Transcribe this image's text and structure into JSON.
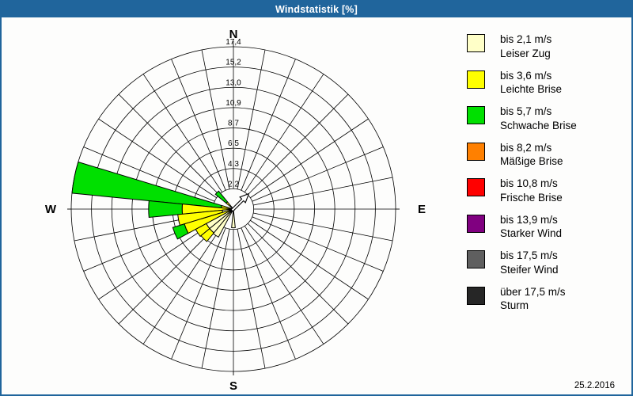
{
  "window": {
    "title": "Windstatistik [%]",
    "date": "25.2.2016"
  },
  "colors": {
    "titlebar": "#20659C",
    "border": "#20659C",
    "background": "#FDFDFC",
    "grid": "#000000"
  },
  "legend": {
    "entries": [
      {
        "id": "leiser_zug",
        "color": "#FFFFC8",
        "speed": "bis 2,1 m/s",
        "name": "Leiser Zug"
      },
      {
        "id": "leichte_brise",
        "color": "#FFFF00",
        "speed": "bis 3,6 m/s",
        "name": "Leichte Brise"
      },
      {
        "id": "schwache_brise",
        "color": "#00E000",
        "speed": "bis 5,7 m/s",
        "name": "Schwache Brise"
      },
      {
        "id": "maessige_brise",
        "color": "#FF8000",
        "speed": "bis 8,2 m/s",
        "name": "Mäßige Brise"
      },
      {
        "id": "frische_brise",
        "color": "#FF0000",
        "speed": "bis 10,8 m/s",
        "name": "Frische Brise"
      },
      {
        "id": "starker_wind",
        "color": "#800080",
        "speed": "bis 13,9 m/s",
        "name": "Starker Wind"
      },
      {
        "id": "steifer_wind",
        "color": "#5F5F5F",
        "speed": "bis 17,5 m/s",
        "name": "Steifer Wind"
      },
      {
        "id": "sturm",
        "color": "#262626",
        "speed": "über 17,5 m/s",
        "name": "Sturm"
      }
    ]
  },
  "chart_data": {
    "type": "wind-rose-polar-bar",
    "title": "Windstatistik [%]",
    "units": "%",
    "scale_max": 17.4,
    "ring_labels": [
      "2,2",
      "4,3",
      "6,5",
      "8,7",
      "10,9",
      "13,0",
      "15,2",
      "17,4"
    ],
    "ring_values": [
      2.2,
      4.3,
      6.5,
      8.7,
      10.9,
      13.0,
      15.2,
      17.4
    ],
    "sectors": 32,
    "sector_width_deg": 11.25,
    "compass": {
      "n": "N",
      "e": "E",
      "s": "S",
      "w": "W"
    },
    "grid_on": true,
    "legend_position": "right",
    "petals": [
      {
        "dir_deg": 281.25,
        "segments": [
          [
            "leichte_brise",
            1.3
          ],
          [
            "schwache_brise",
            17.4
          ]
        ]
      },
      {
        "dir_deg": 270.0,
        "segments": [
          [
            "leichte_brise",
            5.5
          ],
          [
            "schwache_brise",
            9.1
          ]
        ]
      },
      {
        "dir_deg": 258.75,
        "segments": [
          [
            "leiser_zug",
            1.2
          ],
          [
            "leichte_brise",
            6.0
          ]
        ]
      },
      {
        "dir_deg": 247.5,
        "segments": [
          [
            "leichte_brise",
            5.5
          ],
          [
            "schwache_brise",
            6.8
          ]
        ]
      },
      {
        "dir_deg": 236.25,
        "segments": [
          [
            "leiser_zug",
            3.3
          ],
          [
            "leichte_brise",
            4.6
          ]
        ]
      },
      {
        "dir_deg": 225.0,
        "segments": [
          [
            "leiser_zug",
            3.3
          ],
          [
            "leichte_brise",
            4.5
          ]
        ]
      },
      {
        "dir_deg": 213.75,
        "segments": [
          [
            "leiser_zug",
            3.4
          ]
        ]
      },
      {
        "dir_deg": 315.0,
        "segments": [
          [
            "leichte_brise",
            1.0
          ],
          [
            "schwache_brise",
            2.5
          ]
        ]
      },
      {
        "dir_deg": 180.0,
        "segments": [
          [
            "leiser_zug",
            2.0
          ]
        ]
      }
    ],
    "wind_direction_arrow_deg": 45
  }
}
